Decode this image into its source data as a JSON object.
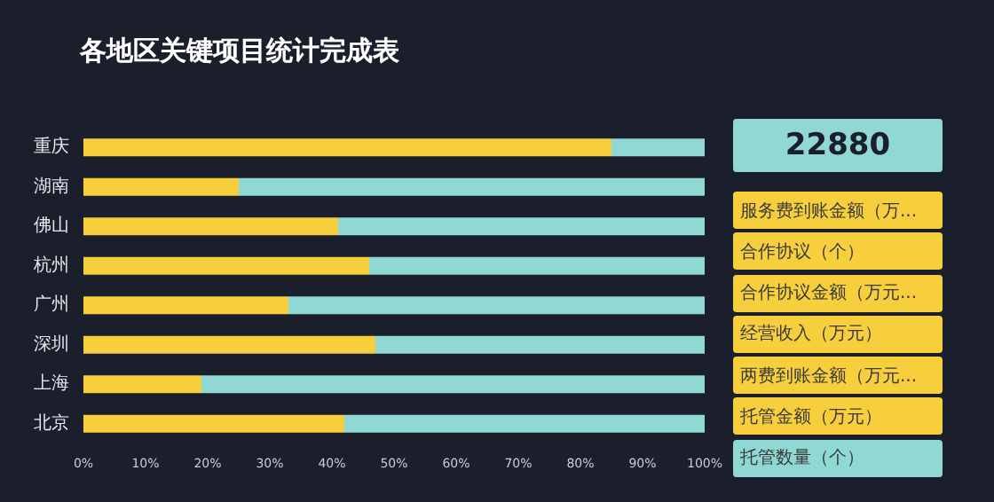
{
  "chart_data": [
    {
      "type": "bar",
      "title": "各地区关键项目统计完成表",
      "orientation": "horizontal",
      "stacked": true,
      "categories": [
        "重庆",
        "湖南",
        "佛山",
        "杭州",
        "广州",
        "深圳",
        "上海",
        "北京"
      ],
      "series": [
        {
          "color": "#f7cf3c",
          "values": [
            85,
            25,
            41,
            46,
            33,
            47,
            19,
            42
          ]
        },
        {
          "color": "#8fd8d3",
          "values": [
            15,
            75,
            59,
            54,
            67,
            53,
            81,
            58
          ]
        }
      ],
      "xlim": [
        0,
        100
      ],
      "xticks": [
        {
          "value": 0,
          "label": "0%"
        },
        {
          "value": 10,
          "label": "10%"
        },
        {
          "value": 20,
          "label": "20%"
        },
        {
          "value": 30,
          "label": "30%"
        },
        {
          "value": 40,
          "label": "40%"
        },
        {
          "value": 50,
          "label": "50%"
        },
        {
          "value": 60,
          "label": "60%"
        },
        {
          "value": 70,
          "label": "70%"
        },
        {
          "value": 80,
          "label": "80%"
        },
        {
          "value": 90,
          "label": "90%"
        },
        {
          "value": 100,
          "label": "100%"
        }
      ],
      "grid": false
    },
    {
      "type": "other",
      "annotations": [
        "22880",
        "服务费到账金额（万...",
        "合作协议（个）",
        "合作协议金额（万元...",
        "经营收入（万元）",
        "两费到账金额（万元...",
        "托管金额（万元）",
        "托管数量（个）"
      ],
      "colors": [
        "#8fd8d3",
        "#f7cf3c",
        "#f7cf3c",
        "#f7cf3c",
        "#f7cf3c",
        "#f7cf3c",
        "#f7cf3c",
        "#8fd8d3"
      ]
    }
  ]
}
